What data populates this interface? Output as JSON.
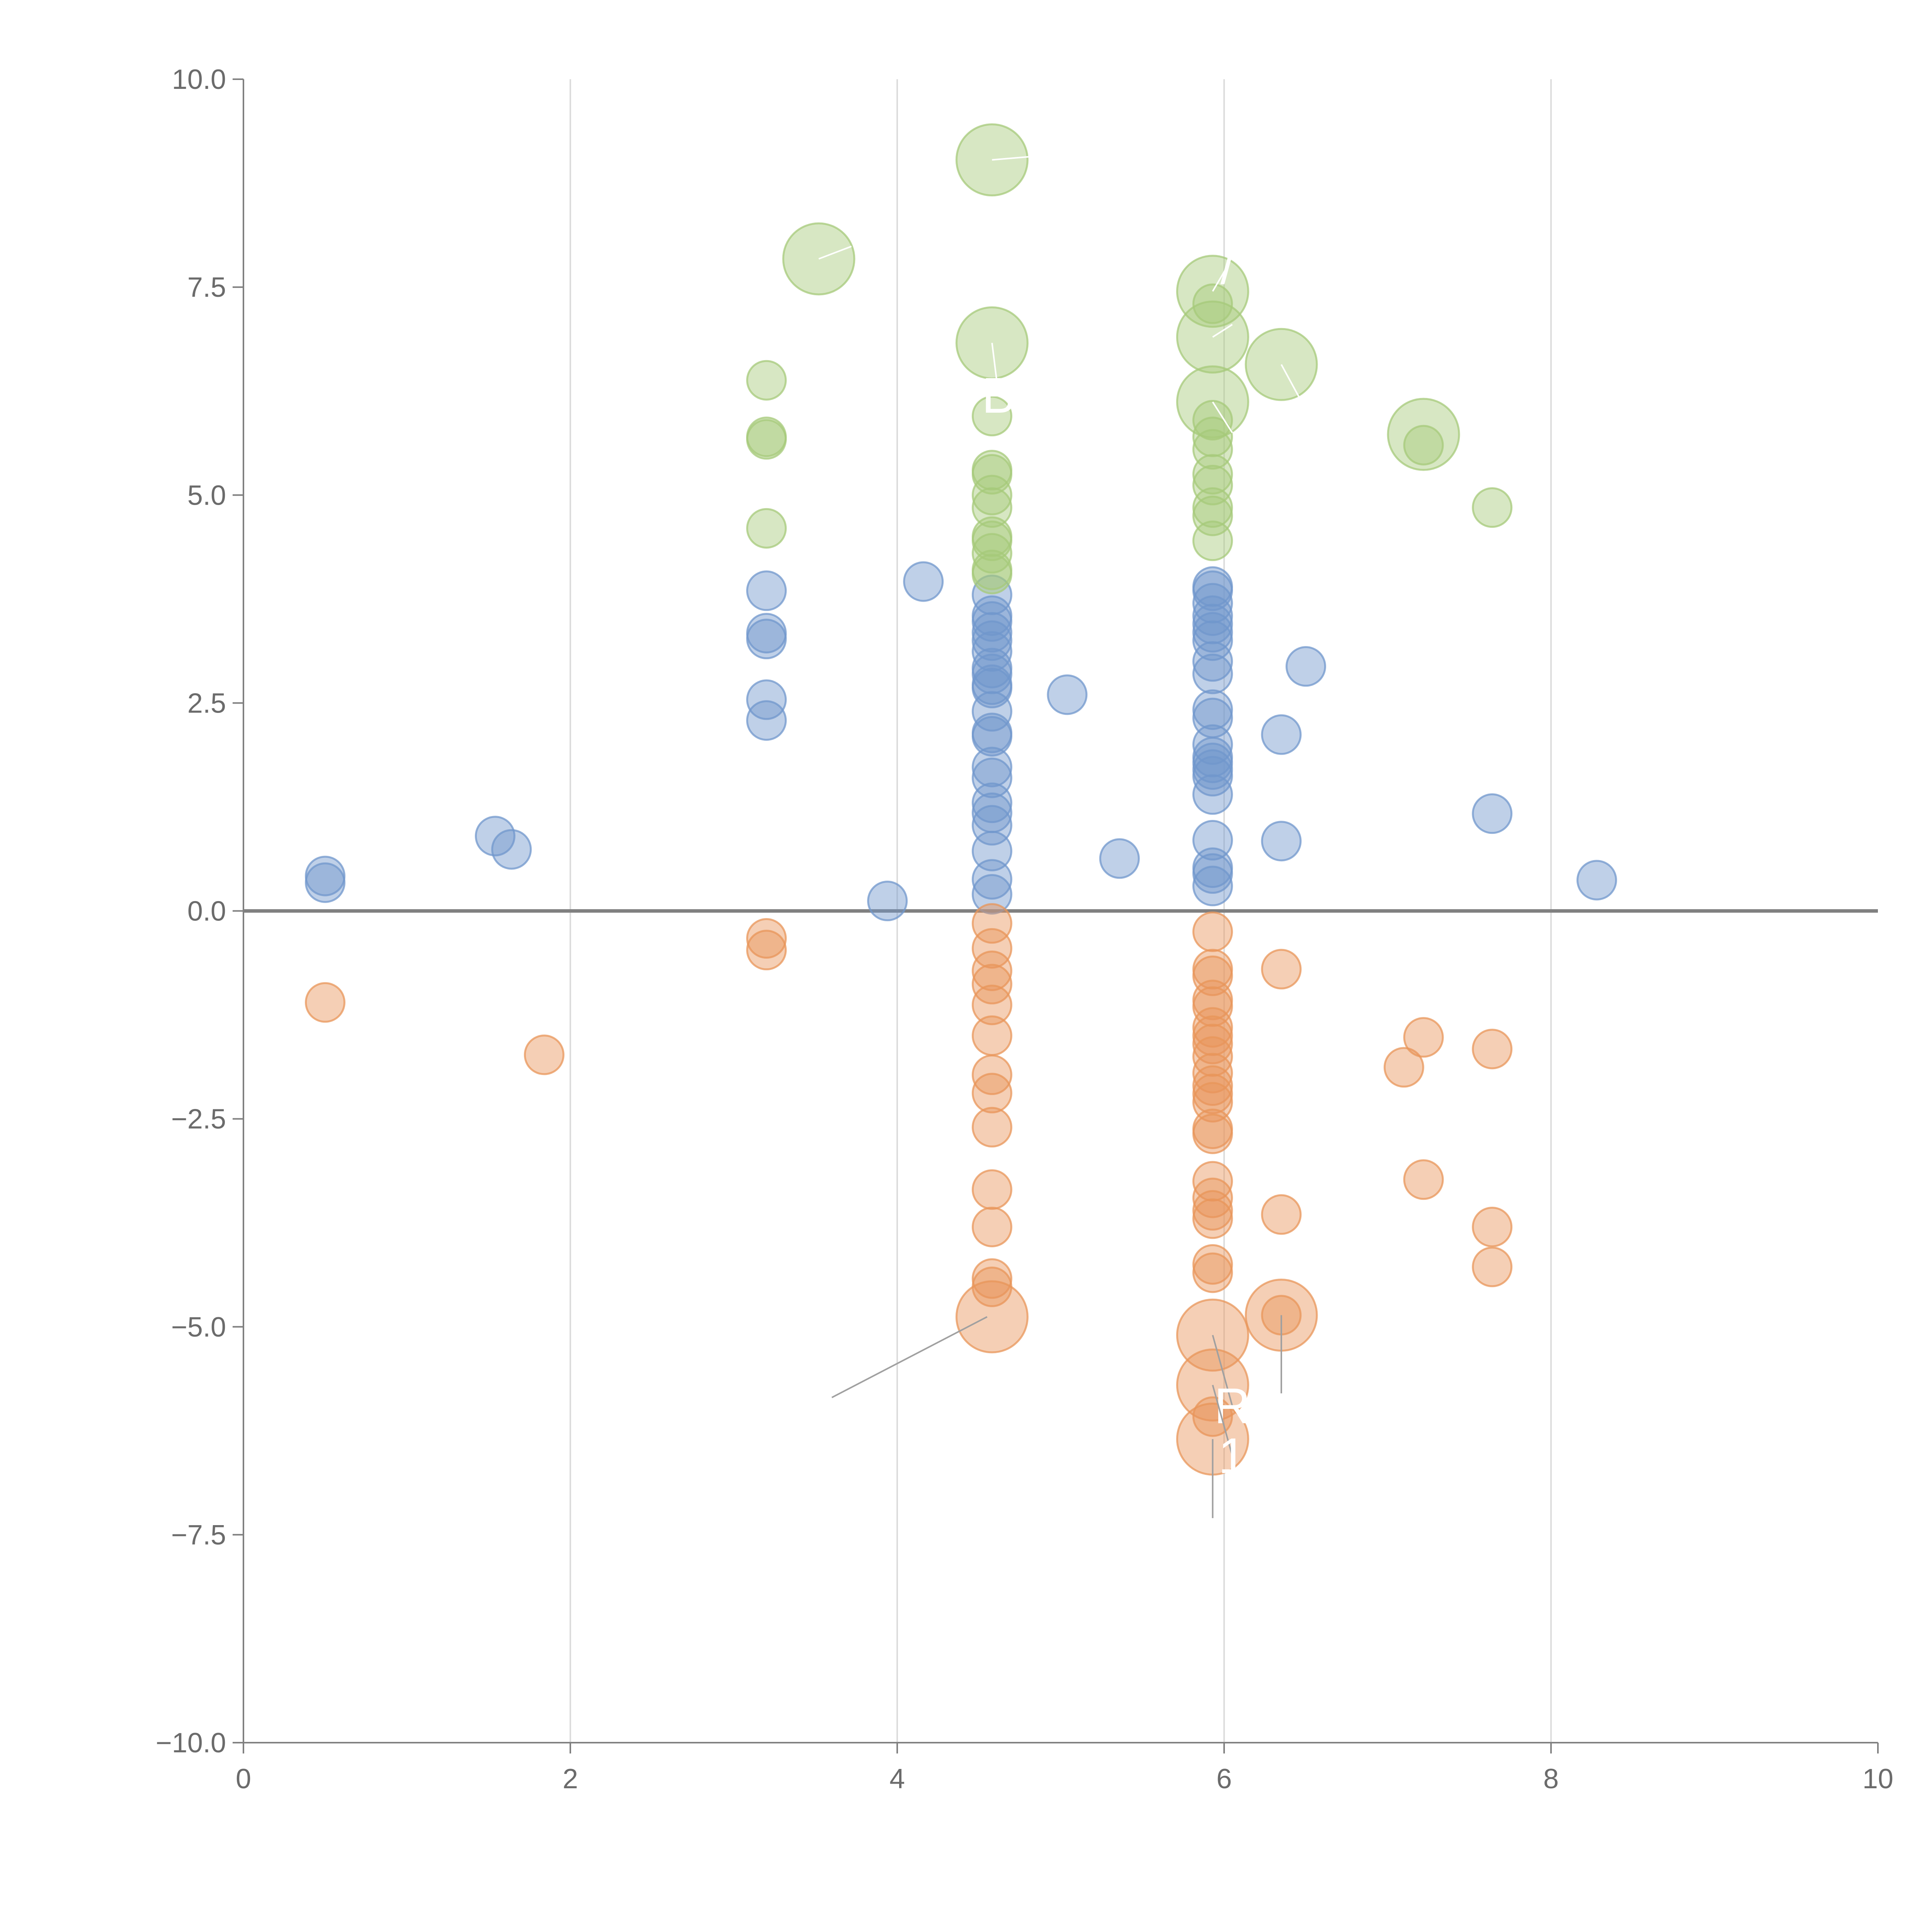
{
  "chart_data": {
    "type": "scatter",
    "title": "",
    "xlabel": "",
    "ylabel": "",
    "xlim": [
      0,
      10
    ],
    "ylim": [
      -10,
      10
    ],
    "x_ticks": [
      "0",
      "2",
      "4",
      "6",
      "8",
      "10"
    ],
    "x_tick_values": [
      0,
      2,
      4,
      6,
      8,
      10
    ],
    "y_ticks": [
      "10.0",
      "7.5",
      "5.0",
      "2.5",
      "0.0",
      "−2.5",
      "−5.0",
      "−7.5",
      "−10.0"
    ],
    "y_tick_values": [
      10,
      7.5,
      5,
      2.5,
      0,
      -2.5,
      -5,
      -7.5,
      -10
    ],
    "grid": "vertical",
    "reference_line_y": 0,
    "colors": {
      "blue": "#7097cc",
      "orange": "#e8955a",
      "green": "#a6c97a",
      "grid": "#dcdcdc",
      "axis": "#808080",
      "leader_light": "#ffffff",
      "leader_dark": "#a0a0a0"
    },
    "series": [
      {
        "name": "blue",
        "color": "#7097cc",
        "points": [
          [
            0.5,
            0.42,
            1
          ],
          [
            0.5,
            0.34,
            1
          ],
          [
            1.54,
            0.9,
            1
          ],
          [
            1.64,
            0.74,
            1
          ],
          [
            3.2,
            3.85,
            1
          ],
          [
            3.2,
            3.34,
            1
          ],
          [
            3.2,
            3.27,
            1
          ],
          [
            3.2,
            2.54,
            1
          ],
          [
            3.2,
            2.29,
            1
          ],
          [
            3.94,
            0.12,
            1
          ],
          [
            4.16,
            3.96,
            1
          ],
          [
            4.58,
            3.8,
            1
          ],
          [
            4.58,
            3.55,
            1
          ],
          [
            4.58,
            3.48,
            1
          ],
          [
            4.58,
            3.35,
            1
          ],
          [
            4.58,
            3.25,
            1
          ],
          [
            4.58,
            3.12,
            1
          ],
          [
            4.58,
            2.92,
            1
          ],
          [
            4.58,
            2.85,
            1
          ],
          [
            4.58,
            2.72,
            1
          ],
          [
            4.58,
            2.68,
            1
          ],
          [
            4.58,
            2.4,
            1
          ],
          [
            4.58,
            2.14,
            1
          ],
          [
            4.58,
            2.1,
            1
          ],
          [
            4.58,
            1.73,
            1
          ],
          [
            4.58,
            1.6,
            1
          ],
          [
            4.58,
            1.3,
            1
          ],
          [
            4.58,
            1.18,
            1
          ],
          [
            4.58,
            1.03,
            1
          ],
          [
            4.58,
            0.72,
            1
          ],
          [
            4.58,
            0.38,
            1
          ],
          [
            4.58,
            0.2,
            1
          ],
          [
            5.04,
            2.6,
            1
          ],
          [
            5.36,
            0.63,
            1
          ],
          [
            5.93,
            3.9,
            1
          ],
          [
            5.93,
            3.85,
            1
          ],
          [
            5.93,
            3.7,
            1
          ],
          [
            5.93,
            3.55,
            1
          ],
          [
            5.93,
            3.45,
            1
          ],
          [
            5.93,
            3.35,
            1
          ],
          [
            5.93,
            3.25,
            1
          ],
          [
            5.93,
            3.0,
            1
          ],
          [
            5.93,
            2.85,
            1
          ],
          [
            5.93,
            2.42,
            1
          ],
          [
            5.93,
            2.32,
            1
          ],
          [
            5.93,
            2.0,
            1
          ],
          [
            5.93,
            1.85,
            1
          ],
          [
            5.93,
            1.78,
            1
          ],
          [
            5.93,
            1.7,
            1
          ],
          [
            5.93,
            1.62,
            1
          ],
          [
            5.93,
            1.4,
            1
          ],
          [
            5.93,
            0.85,
            1
          ],
          [
            5.93,
            0.52,
            1
          ],
          [
            5.93,
            0.45,
            1
          ],
          [
            5.93,
            0.3,
            1
          ],
          [
            6.35,
            2.12,
            1
          ],
          [
            6.35,
            0.84,
            1
          ],
          [
            6.5,
            2.94,
            1
          ],
          [
            7.64,
            1.17,
            1
          ],
          [
            8.28,
            0.37,
            1
          ]
        ]
      },
      {
        "name": "orange",
        "color": "#e8955a",
        "points": [
          [
            0.5,
            -1.1,
            1
          ],
          [
            1.84,
            -1.73,
            1
          ],
          [
            3.2,
            -0.33,
            1
          ],
          [
            3.2,
            -0.47,
            1
          ],
          [
            4.58,
            -0.15,
            1
          ],
          [
            4.58,
            -0.45,
            1
          ],
          [
            4.58,
            -0.72,
            1
          ],
          [
            4.58,
            -0.88,
            1
          ],
          [
            4.58,
            -1.13,
            1
          ],
          [
            4.58,
            -1.5,
            1
          ],
          [
            4.58,
            -1.97,
            1
          ],
          [
            4.58,
            -2.19,
            1
          ],
          [
            4.58,
            -2.6,
            1
          ],
          [
            4.58,
            -3.35,
            1
          ],
          [
            4.58,
            -3.8,
            1
          ],
          [
            4.58,
            -4.42,
            1
          ],
          [
            4.58,
            -4.52,
            1
          ],
          [
            4.58,
            -4.88,
            3
          ],
          [
            5.93,
            -0.25,
            1
          ],
          [
            5.93,
            -0.7,
            1
          ],
          [
            5.93,
            -0.78,
            1
          ],
          [
            5.93,
            -1.07,
            1
          ],
          [
            5.93,
            -1.15,
            1
          ],
          [
            5.93,
            -1.4,
            1
          ],
          [
            5.93,
            -1.5,
            1
          ],
          [
            5.93,
            -1.6,
            1
          ],
          [
            5.93,
            -1.75,
            1
          ],
          [
            5.93,
            -1.95,
            1
          ],
          [
            5.93,
            -2.1,
            1
          ],
          [
            5.93,
            -2.2,
            1
          ],
          [
            5.93,
            -2.3,
            1
          ],
          [
            5.93,
            -2.62,
            1
          ],
          [
            5.93,
            -2.68,
            1
          ],
          [
            5.93,
            -3.25,
            1
          ],
          [
            5.93,
            -3.45,
            1
          ],
          [
            5.93,
            -3.6,
            1
          ],
          [
            5.93,
            -3.7,
            1
          ],
          [
            5.93,
            -4.25,
            1
          ],
          [
            5.93,
            -4.35,
            1
          ],
          [
            5.93,
            -5.1,
            3
          ],
          [
            5.93,
            -5.7,
            3
          ],
          [
            5.93,
            -6.08,
            1
          ],
          [
            5.93,
            -6.35,
            3
          ],
          [
            6.35,
            -0.7,
            1
          ],
          [
            6.35,
            -3.65,
            1
          ],
          [
            6.35,
            -4.86,
            3
          ],
          [
            6.35,
            -4.86,
            1
          ],
          [
            7.1,
            -1.88,
            1
          ],
          [
            7.22,
            -1.52,
            1
          ],
          [
            7.22,
            -3.23,
            1
          ],
          [
            7.64,
            -1.66,
            1
          ],
          [
            7.64,
            -3.8,
            1
          ],
          [
            7.64,
            -4.28,
            1
          ]
        ]
      },
      {
        "name": "green",
        "color": "#a6c97a",
        "points": [
          [
            3.2,
            6.38,
            1
          ],
          [
            3.2,
            5.7,
            1
          ],
          [
            3.2,
            5.67,
            1
          ],
          [
            3.2,
            4.6,
            1
          ],
          [
            3.52,
            7.84,
            3
          ],
          [
            4.58,
            9.03,
            3
          ],
          [
            4.58,
            6.83,
            3
          ],
          [
            4.58,
            5.95,
            1
          ],
          [
            4.58,
            5.3,
            1
          ],
          [
            4.58,
            5.25,
            1
          ],
          [
            4.58,
            5.0,
            1
          ],
          [
            4.58,
            4.85,
            1
          ],
          [
            4.58,
            4.5,
            1
          ],
          [
            4.58,
            4.45,
            1
          ],
          [
            4.58,
            4.3,
            1
          ],
          [
            4.58,
            4.1,
            1
          ],
          [
            4.58,
            4.05,
            1
          ],
          [
            5.93,
            7.45,
            3
          ],
          [
            5.93,
            7.3,
            1
          ],
          [
            5.93,
            6.9,
            3
          ],
          [
            5.93,
            6.12,
            3
          ],
          [
            5.93,
            5.9,
            1
          ],
          [
            5.93,
            5.7,
            1
          ],
          [
            5.93,
            5.55,
            1
          ],
          [
            5.93,
            5.25,
            1
          ],
          [
            5.93,
            5.12,
            1
          ],
          [
            5.93,
            4.85,
            1
          ],
          [
            5.93,
            4.75,
            1
          ],
          [
            5.93,
            4.45,
            1
          ],
          [
            6.35,
            6.57,
            3
          ],
          [
            7.22,
            5.73,
            3
          ],
          [
            7.22,
            5.6,
            1
          ],
          [
            7.64,
            4.85,
            1
          ]
        ]
      }
    ],
    "annotations": [
      {
        "text": "",
        "point": [
          4.58,
          9.03
        ],
        "label_at": [
          4.88,
          9.08
        ],
        "style": "light"
      },
      {
        "text": "",
        "point": [
          3.52,
          7.84
        ],
        "label_at": [
          3.72,
          7.99
        ],
        "style": "light"
      },
      {
        "text": "/",
        "point": [
          5.93,
          7.45
        ],
        "label_at": [
          6.02,
          7.75
        ],
        "style": "light"
      },
      {
        "text": "",
        "point": [
          5.93,
          6.9
        ],
        "label_at": [
          6.05,
          7.05
        ],
        "style": "light"
      },
      {
        "text": "B",
        "point": [
          4.58,
          6.83
        ],
        "label_at": [
          4.62,
          6.2
        ],
        "style": "light"
      },
      {
        "text": "",
        "point": [
          6.35,
          6.57
        ],
        "label_at": [
          6.48,
          6.1
        ],
        "style": "light"
      },
      {
        "text": "",
        "point": [
          5.93,
          6.12
        ],
        "label_at": [
          6.05,
          5.75
        ],
        "style": "light"
      },
      {
        "text": "",
        "point": [
          4.58,
          4.88
        ],
        "label_at": [
          4.58,
          4.88
        ],
        "style": "none"
      },
      {
        "text": "",
        "point": [
          4.55,
          -4.88
        ],
        "label_at": [
          3.6,
          -5.85
        ],
        "style": "dark"
      },
      {
        "text": "R",
        "point": [
          5.93,
          -5.1
        ],
        "label_at": [
          6.05,
          -5.95
        ],
        "style": "dark"
      },
      {
        "text": "1",
        "point": [
          5.93,
          -5.7
        ],
        "label_at": [
          6.05,
          -6.55
        ],
        "style": "dark"
      },
      {
        "text": "",
        "point": [
          5.93,
          -6.35
        ],
        "label_at": [
          5.93,
          -7.3
        ],
        "style": "dark"
      },
      {
        "text": "",
        "point": [
          6.35,
          -4.86
        ],
        "label_at": [
          6.35,
          -5.8
        ],
        "style": "dark"
      }
    ]
  }
}
